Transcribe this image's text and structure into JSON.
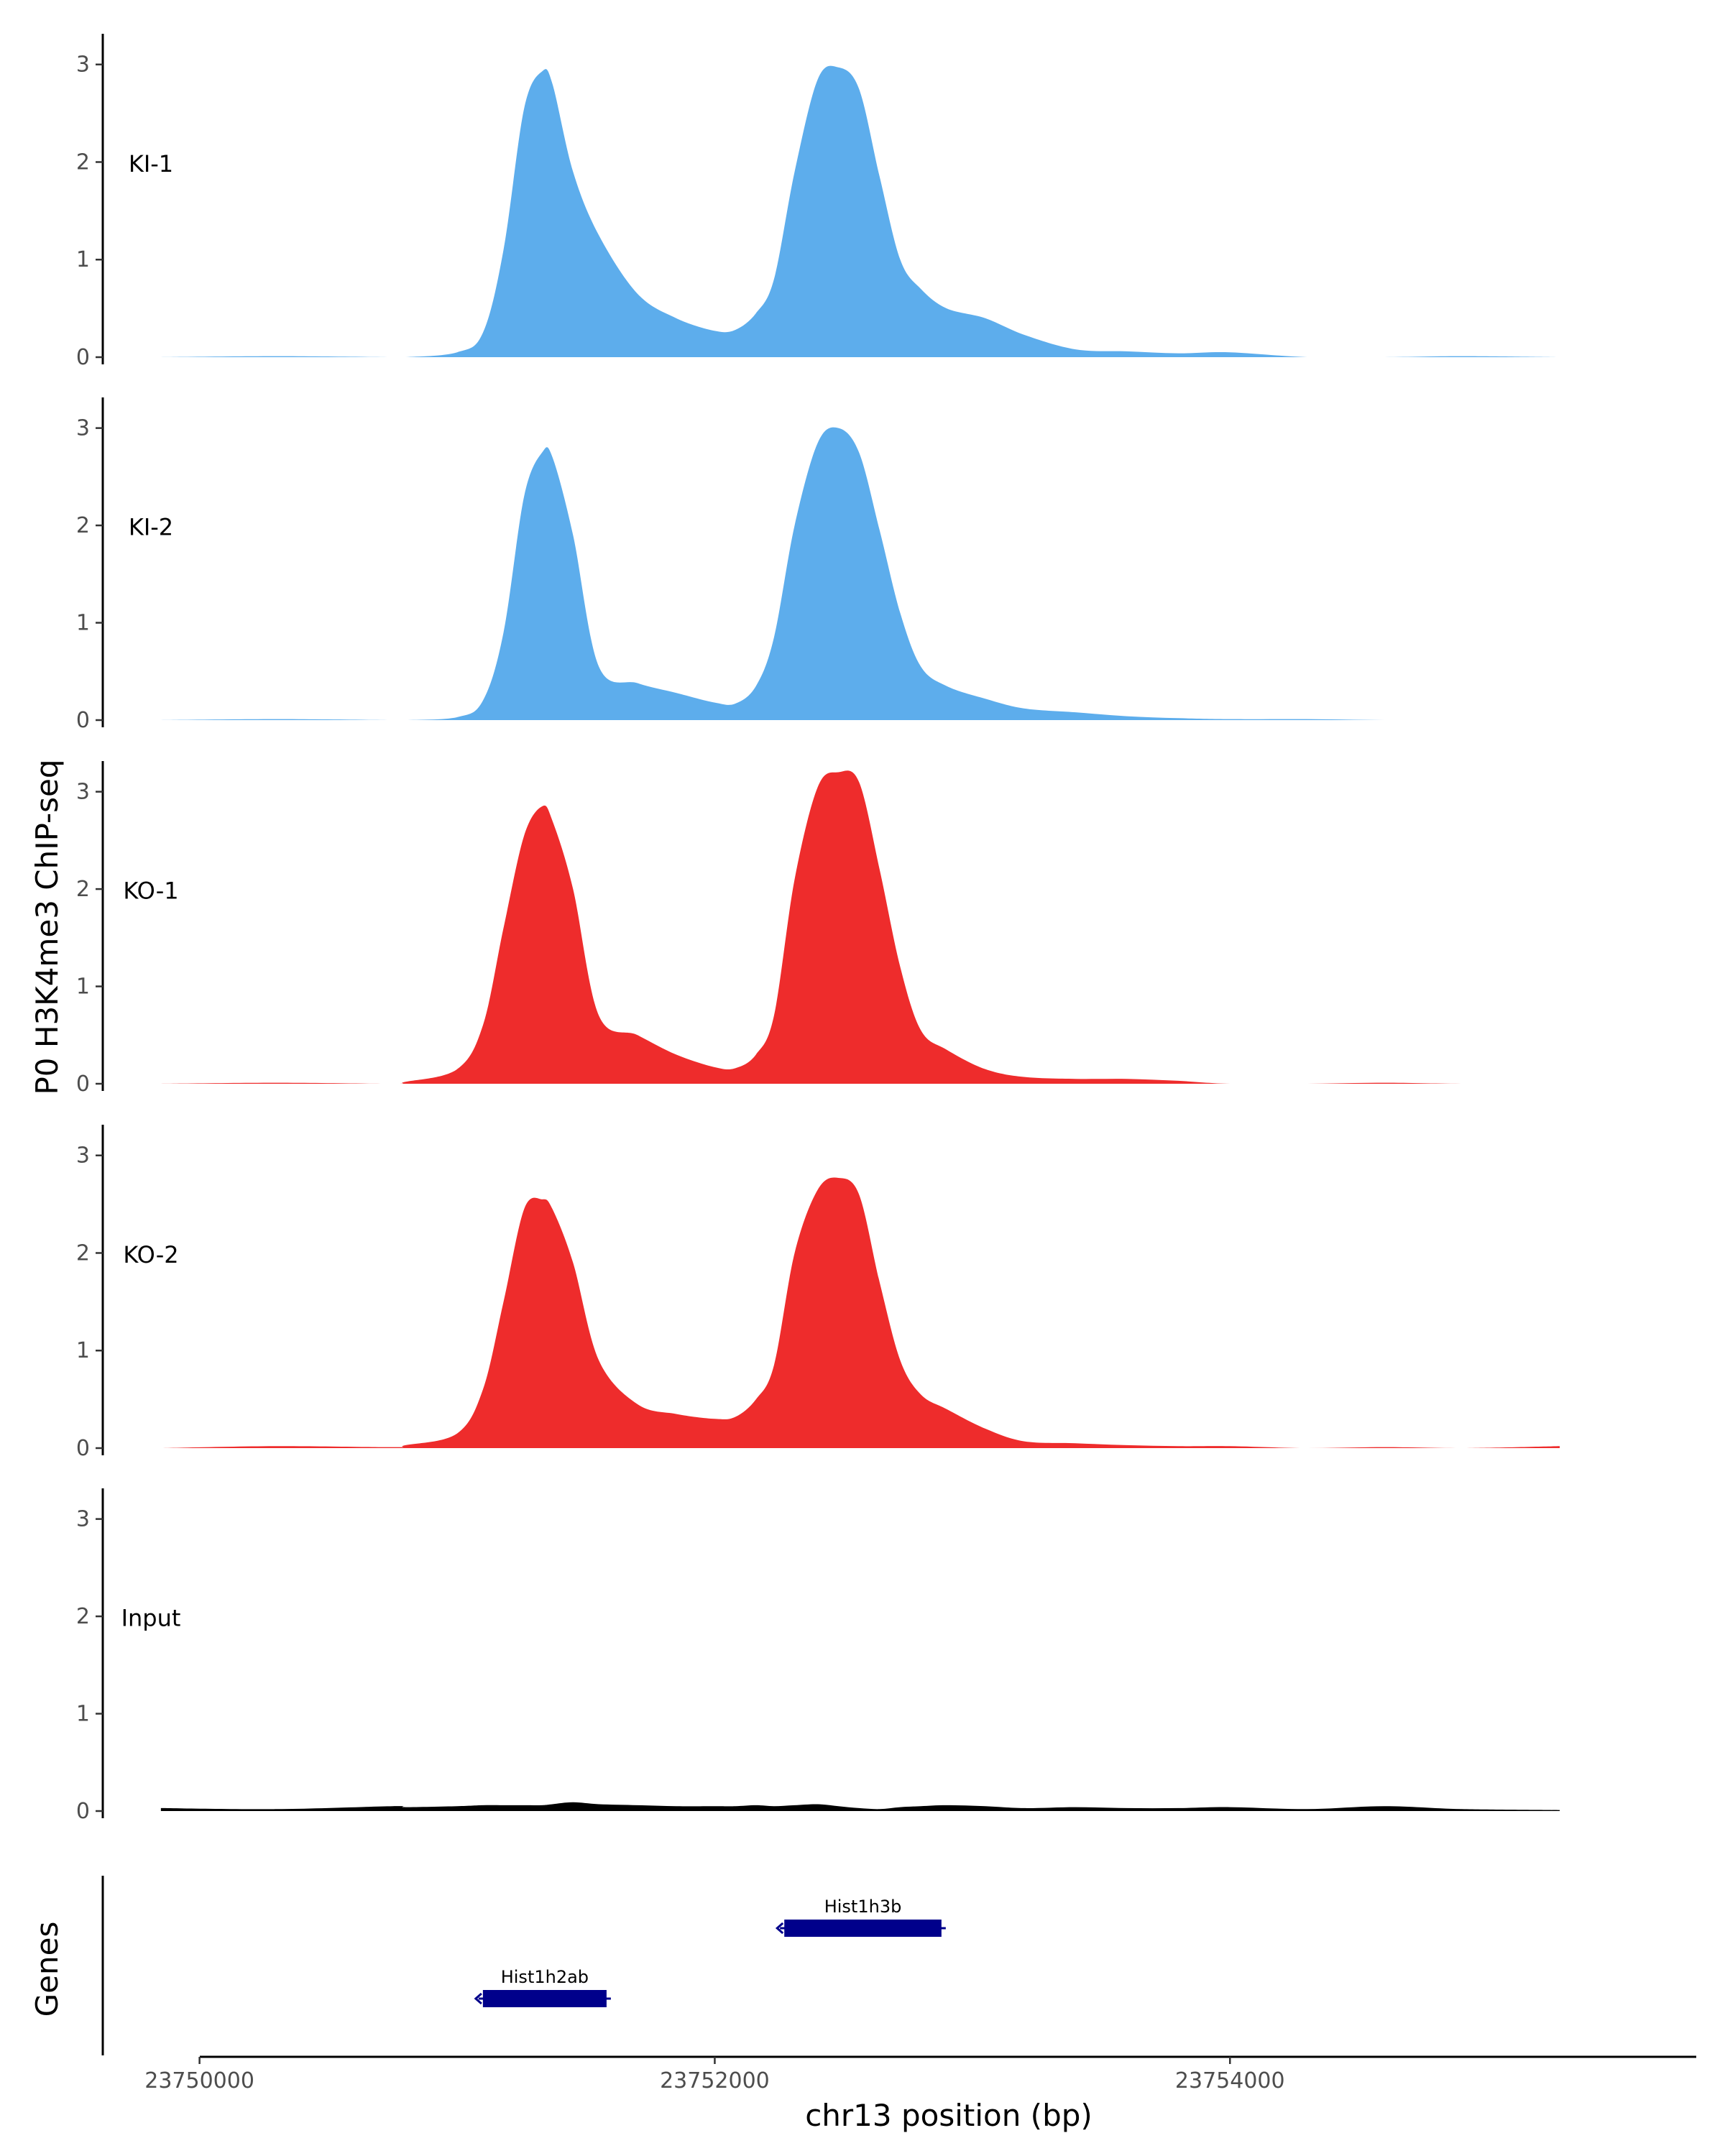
{
  "chart_data": {
    "type": "area",
    "ylabel": "P0 H3K4me3 ChIP-seq",
    "xlabel": "chr13 position (bp)",
    "xlim": [
      23749630,
      23755810
    ],
    "ylim": [
      0,
      3.3
    ],
    "y_ticks": [
      0,
      1,
      2,
      3
    ],
    "y_tick_labels": [
      "0",
      "1",
      "2",
      "3"
    ],
    "x_ticks": [
      23750000,
      23752000,
      23754000
    ],
    "x_tick_labels": [
      "23750000",
      "23752000",
      "23754000"
    ],
    "x": [
      23749850,
      23750300,
      23750750,
      23750800,
      23751000,
      23751100,
      23751180,
      23751260,
      23751330,
      23751370,
      23751450,
      23751550,
      23751700,
      23751850,
      23752000,
      23752080,
      23752160,
      23752230,
      23752310,
      23752400,
      23752480,
      23752560,
      23752640,
      23752720,
      23752800,
      23752900,
      23753050,
      23753200,
      23753400,
      23753600,
      23753800,
      23754000,
      23754300,
      23754600,
      23754900,
      23755280
    ],
    "series": [
      {
        "name": "KI-1",
        "label": "KI-1",
        "color": "#5DADEC",
        "values": [
          0.0,
          0.01,
          0.0,
          0.0,
          0.05,
          0.25,
          1.1,
          2.55,
          2.93,
          2.8,
          1.9,
          1.25,
          0.65,
          0.4,
          0.27,
          0.28,
          0.45,
          0.8,
          1.9,
          2.85,
          2.97,
          2.75,
          1.85,
          1.0,
          0.7,
          0.5,
          0.4,
          0.23,
          0.08,
          0.06,
          0.04,
          0.05,
          0.0,
          0.0,
          0.01,
          0.0
        ]
      },
      {
        "name": "KI-2",
        "label": "KI-2",
        "color": "#5DADEC",
        "values": [
          0.0,
          0.01,
          0.0,
          0.0,
          0.03,
          0.2,
          0.9,
          2.3,
          2.75,
          2.7,
          1.9,
          0.55,
          0.38,
          0.28,
          0.18,
          0.17,
          0.35,
          0.85,
          2.0,
          2.85,
          3.0,
          2.75,
          1.95,
          1.1,
          0.55,
          0.35,
          0.22,
          0.12,
          0.08,
          0.04,
          0.02,
          0.01,
          0.01,
          0.0,
          0.0,
          0.0
        ]
      },
      {
        "name": "KO-1",
        "label": "KO-1",
        "color": "#EE2C2C",
        "values": [
          0.0,
          0.01,
          0.0,
          0.02,
          0.15,
          0.6,
          1.6,
          2.55,
          2.85,
          2.7,
          2.0,
          0.7,
          0.5,
          0.3,
          0.17,
          0.16,
          0.3,
          0.7,
          2.1,
          3.05,
          3.2,
          3.1,
          2.2,
          1.2,
          0.55,
          0.35,
          0.15,
          0.07,
          0.05,
          0.05,
          0.03,
          0.0,
          0.0,
          0.01,
          0.0,
          0.0
        ]
      },
      {
        "name": "KO-2",
        "label": "KO-2",
        "color": "#EE2C2C",
        "values": [
          0.0,
          0.02,
          0.01,
          0.03,
          0.15,
          0.6,
          1.5,
          2.45,
          2.55,
          2.45,
          1.9,
          0.9,
          0.45,
          0.35,
          0.3,
          0.32,
          0.5,
          0.85,
          2.0,
          2.65,
          2.77,
          2.6,
          1.7,
          0.9,
          0.55,
          0.4,
          0.2,
          0.07,
          0.05,
          0.03,
          0.02,
          0.02,
          0.0,
          0.01,
          0.0,
          0.02
        ]
      },
      {
        "name": "Input",
        "label": "Input",
        "color": "#000000",
        "values": [
          0.03,
          0.02,
          0.05,
          0.04,
          0.05,
          0.06,
          0.06,
          0.06,
          0.06,
          0.07,
          0.09,
          0.07,
          0.06,
          0.05,
          0.05,
          0.05,
          0.06,
          0.05,
          0.06,
          0.07,
          0.05,
          0.03,
          0.02,
          0.04,
          0.05,
          0.06,
          0.05,
          0.03,
          0.04,
          0.03,
          0.03,
          0.04,
          0.02,
          0.05,
          0.02,
          0.01
        ]
      }
    ],
    "genes_track": {
      "label": "Genes",
      "genes": [
        {
          "name": "Hist1h3b",
          "start": 23752270,
          "end": 23752880,
          "strand": "-",
          "row": 1
        },
        {
          "name": "Hist1h2ab",
          "start": 23751100,
          "end": 23751580,
          "strand": "-",
          "row": 2
        }
      ],
      "color": "#00008B"
    }
  }
}
